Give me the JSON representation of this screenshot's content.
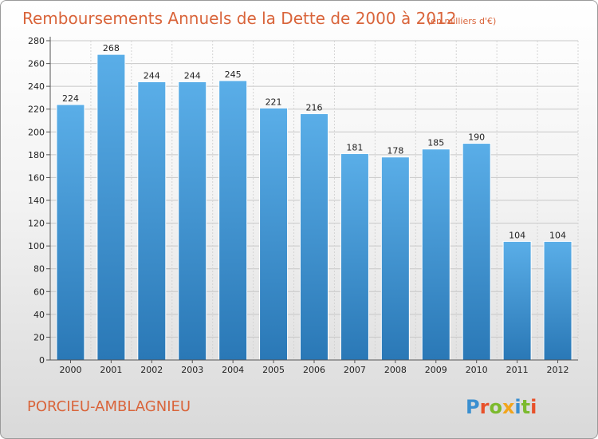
{
  "header": {
    "title": "Remboursements Annuels de la Dette de 2000 à 2012",
    "unit": "(en milliers d'€)"
  },
  "footer": {
    "city": "PORCIEU-AMBLAGNIEU",
    "logo": "Proxiti"
  },
  "colors": {
    "title": "#d9643a",
    "bar_top": "#5aaee8",
    "bar_bottom": "#2a78b6",
    "logo_letters": [
      "#3a8fd0",
      "#e8512a",
      "#7cba2e",
      "#f2a51c",
      "#3a8fd0",
      "#7cba2e",
      "#e8512a"
    ]
  },
  "chart_data": {
    "type": "bar",
    "title": "Remboursements Annuels de la Dette de 2000 à 2012",
    "subtitle": "(en milliers d'€)",
    "categories": [
      "2000",
      "2001",
      "2002",
      "2003",
      "2004",
      "2005",
      "2006",
      "2007",
      "2008",
      "2009",
      "2010",
      "2011",
      "2012"
    ],
    "values": [
      224,
      268,
      244,
      244,
      245,
      221,
      216,
      181,
      178,
      185,
      190,
      104,
      104
    ],
    "ylim": [
      0,
      280
    ],
    "yticks": [
      0,
      20,
      40,
      60,
      80,
      100,
      120,
      140,
      160,
      180,
      200,
      220,
      240,
      260,
      280
    ],
    "grid": true,
    "legend": "none"
  }
}
